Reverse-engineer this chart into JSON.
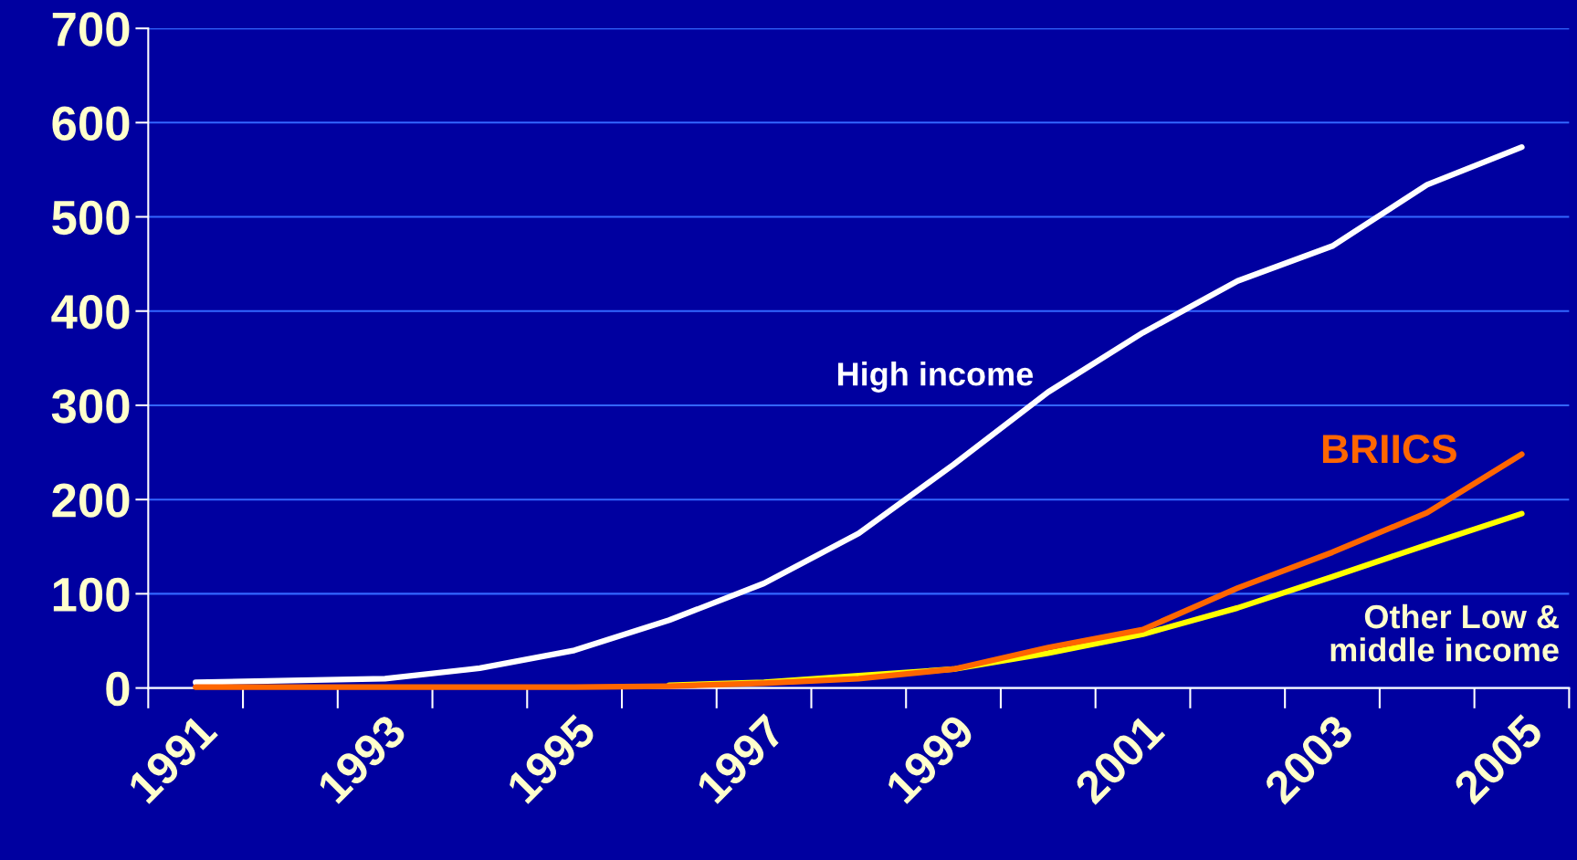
{
  "chart_data": {
    "type": "line",
    "categories": [
      "1991",
      null,
      "1993",
      null,
      "1995",
      null,
      "1997",
      null,
      "1999",
      null,
      "2001",
      null,
      "2003",
      null,
      "2005"
    ],
    "series": [
      {
        "name": "High income",
        "color": "#ffffff",
        "values": [
          6,
          8,
          10,
          21,
          40,
          72,
          111,
          164,
          237,
          314,
          377,
          432,
          469,
          534,
          574
        ]
      },
      {
        "name": "BRIICS",
        "color": "#ff6600",
        "values": [
          1,
          1,
          1,
          1,
          1,
          2,
          5,
          10,
          20,
          43,
          62,
          106,
          144,
          186,
          248
        ]
      },
      {
        "name": "Other Low &\nmiddle income",
        "color": "#ffff00",
        "values": [
          null,
          null,
          null,
          null,
          null,
          3,
          6,
          13,
          20,
          37,
          57,
          85,
          118,
          152,
          185
        ]
      }
    ],
    "ylim": [
      0,
      700
    ],
    "yticks": [
      0,
      100,
      200,
      300,
      400,
      500,
      600,
      700
    ],
    "grid": "y"
  }
}
